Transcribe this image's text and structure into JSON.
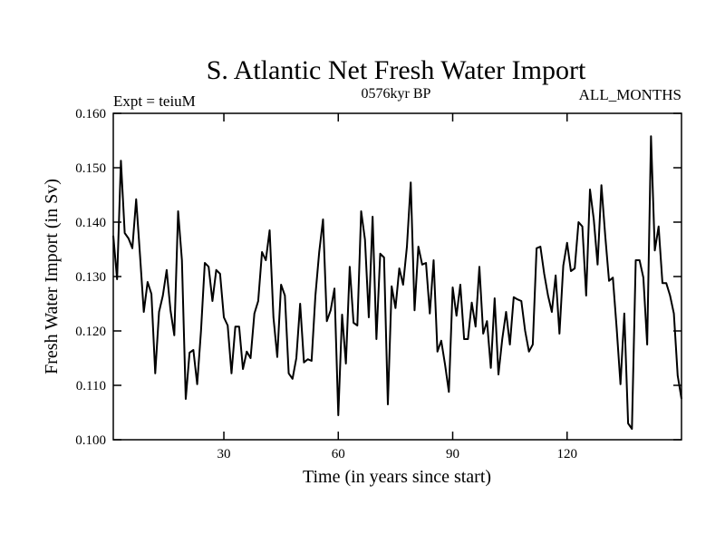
{
  "chart_data": {
    "type": "line",
    "title": "S. Atlantic Net Fresh Water Import",
    "subtitle": "0576kyr BP",
    "left_label": "Expt = teiuM",
    "right_label": "ALL_MONTHS",
    "xlabel": "Time (in years since start)",
    "ylabel": "Fresh Water Import (in Sv)",
    "xlim": [
      1,
      150
    ],
    "ylim": [
      0.1,
      0.16
    ],
    "xticks": [
      30,
      60,
      90,
      120
    ],
    "xtick_labels": [
      "30",
      "60",
      "90",
      "120"
    ],
    "yticks": [
      0.1,
      0.11,
      0.12,
      0.13,
      0.14,
      0.15,
      0.16
    ],
    "ytick_labels": [
      "0.100",
      "0.110",
      "0.120",
      "0.130",
      "0.140",
      "0.150",
      "0.160"
    ],
    "grid": false,
    "series": [
      {
        "name": "Net Fresh Water Import",
        "x": [
          1,
          2,
          3,
          4,
          5,
          6,
          7,
          8,
          9,
          10,
          11,
          12,
          13,
          14,
          15,
          16,
          17,
          18,
          19,
          20,
          21,
          22,
          23,
          24,
          25,
          26,
          27,
          28,
          29,
          30,
          31,
          32,
          33,
          34,
          35,
          36,
          37,
          38,
          39,
          40,
          41,
          42,
          43,
          44,
          45,
          46,
          47,
          48,
          49,
          50,
          51,
          52,
          53,
          54,
          55,
          56,
          57,
          58,
          59,
          60,
          61,
          62,
          63,
          64,
          65,
          66,
          67,
          68,
          69,
          70,
          71,
          72,
          73,
          74,
          75,
          76,
          77,
          78,
          79,
          80,
          81,
          82,
          83,
          84,
          85,
          86,
          87,
          88,
          89,
          90,
          91,
          92,
          93,
          94,
          95,
          96,
          97,
          98,
          99,
          100,
          101,
          102,
          103,
          104,
          105,
          106,
          107,
          108,
          109,
          110,
          111,
          112,
          113,
          114,
          115,
          116,
          117,
          118,
          119,
          120,
          121,
          122,
          123,
          124,
          125,
          126,
          127,
          128,
          129,
          130,
          131,
          132,
          133,
          134,
          135,
          136,
          137,
          138,
          139,
          140,
          141,
          142,
          143,
          144,
          145,
          146,
          147,
          148,
          149,
          150
        ],
        "values": [
          0.1375,
          0.1295,
          0.1513,
          0.138,
          0.137,
          0.1352,
          0.1442,
          0.134,
          0.1235,
          0.129,
          0.1268,
          0.1122,
          0.1235,
          0.1265,
          0.1312,
          0.1238,
          0.1192,
          0.142,
          0.133,
          0.1075,
          0.116,
          0.1165,
          0.1102,
          0.12,
          0.1325,
          0.1318,
          0.1255,
          0.1312,
          0.1305,
          0.1225,
          0.121,
          0.1122,
          0.1208,
          0.1208,
          0.113,
          0.1162,
          0.115,
          0.1232,
          0.1255,
          0.1345,
          0.133,
          0.1385,
          0.1225,
          0.1152,
          0.1285,
          0.1265,
          0.1122,
          0.1112,
          0.115,
          0.125,
          0.1142,
          0.1148,
          0.1145,
          0.1265,
          0.1345,
          0.1405,
          0.1218,
          0.1238,
          0.1278,
          0.1045,
          0.123,
          0.114,
          0.1318,
          0.1215,
          0.121,
          0.142,
          0.1368,
          0.1225,
          0.141,
          0.1185,
          0.1342,
          0.1335,
          0.1065,
          0.1282,
          0.1242,
          0.1315,
          0.1285,
          0.1355,
          0.1473,
          0.1238,
          0.1355,
          0.1322,
          0.1325,
          0.1232,
          0.133,
          0.1162,
          0.1182,
          0.1138,
          0.1088,
          0.128,
          0.1228,
          0.1285,
          0.1185,
          0.1185,
          0.1252,
          0.1208,
          0.1318,
          0.1195,
          0.1218,
          0.1132,
          0.126,
          0.112,
          0.1185,
          0.1235,
          0.1175,
          0.1262,
          0.1258,
          0.1255,
          0.12,
          0.1162,
          0.1175,
          0.1352,
          0.1355,
          0.1305,
          0.1265,
          0.1235,
          0.1302,
          0.1195,
          0.132,
          0.1362,
          0.131,
          0.1315,
          0.14,
          0.1392,
          0.1265,
          0.146,
          0.1405,
          0.1322,
          0.1468,
          0.1375,
          0.1292,
          0.1298,
          0.1205,
          0.1102,
          0.1232,
          0.103,
          0.102,
          0.133,
          0.133,
          0.1298,
          0.1175,
          0.1558,
          0.1348,
          0.1392,
          0.1288,
          0.1288,
          0.1265,
          0.1232,
          0.1118,
          0.1075
        ]
      }
    ]
  }
}
